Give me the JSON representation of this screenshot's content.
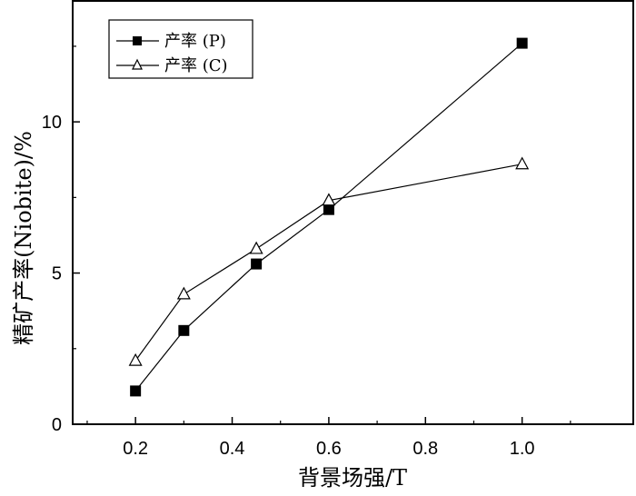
{
  "chart_data": {
    "type": "line",
    "title": "",
    "xlabel": "背景场强/T",
    "ylabel": "精矿产率(Niobite)/%",
    "xlim": [
      0.07,
      1.23
    ],
    "ylim": [
      0,
      14
    ],
    "xticks": [
      0.2,
      0.4,
      0.6,
      0.8,
      1.0
    ],
    "xtick_labels": [
      "0.2",
      "0.4",
      "0.6",
      "0.8",
      "1.0"
    ],
    "yticks": [
      0,
      5,
      10
    ],
    "ytick_labels": [
      "0",
      "5",
      "10"
    ],
    "grid": false,
    "legend_position": "top-left",
    "series": [
      {
        "name": "产率 (P)",
        "marker": "filled-square",
        "color": "#000000",
        "x": [
          0.2,
          0.3,
          0.45,
          0.6,
          1.0
        ],
        "y": [
          1.1,
          3.1,
          5.3,
          7.1,
          12.6
        ]
      },
      {
        "name": "产率 (C)",
        "marker": "open-triangle",
        "color": "#000000",
        "x": [
          0.2,
          0.3,
          0.45,
          0.6,
          1.0
        ],
        "y": [
          2.1,
          4.3,
          5.8,
          7.4,
          8.6
        ]
      }
    ]
  }
}
